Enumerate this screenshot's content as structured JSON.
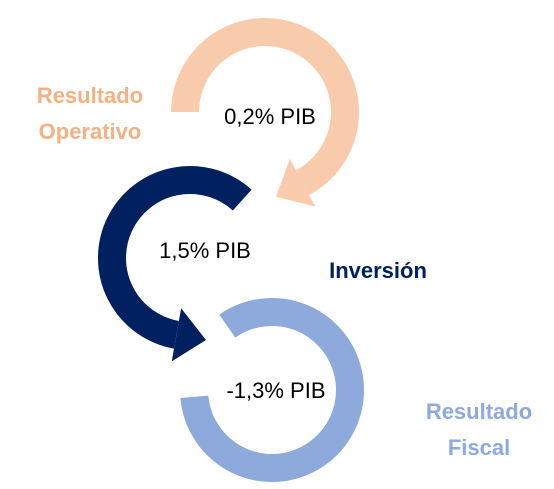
{
  "nodes": [
    {
      "label": [
        "Resultado",
        "Operativo"
      ],
      "value": "0,2% PIB"
    },
    {
      "label": [
        "Inversión"
      ],
      "value": "1,5% PIB"
    },
    {
      "label": [
        "Resultado",
        "Fiscal"
      ],
      "value": "-1,3% PIB"
    }
  ]
}
